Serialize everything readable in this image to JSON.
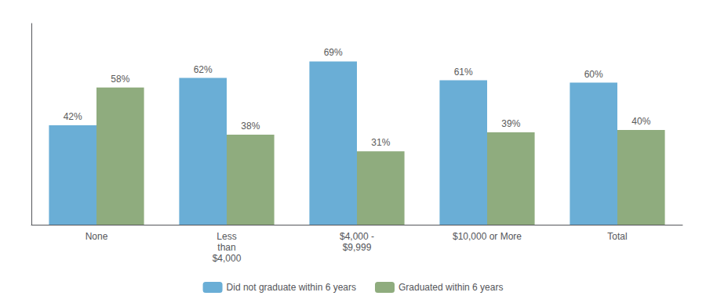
{
  "chart_data": {
    "type": "bar",
    "categories": [
      "None",
      "Less\nthan\n$4,000",
      "$4,000 -\n$9,999",
      "$10,000 or More",
      "Total"
    ],
    "series": [
      {
        "name": "Did not graduate within 6 years",
        "color": "#6aaed6",
        "values": [
          42,
          62,
          69,
          61,
          60
        ],
        "value_labels": [
          "42%",
          "62%",
          "69%",
          "61%",
          "60%"
        ]
      },
      {
        "name": "Graduated within 6 years",
        "color": "#8fac7e",
        "values": [
          58,
          38,
          31,
          39,
          40
        ],
        "value_labels": [
          "58%",
          "38%",
          "31%",
          "39%",
          "40%"
        ]
      }
    ],
    "ylim": [
      0,
      85
    ],
    "grid": false,
    "legend": "bottom",
    "data_labels": true,
    "tick_labels": "x"
  }
}
